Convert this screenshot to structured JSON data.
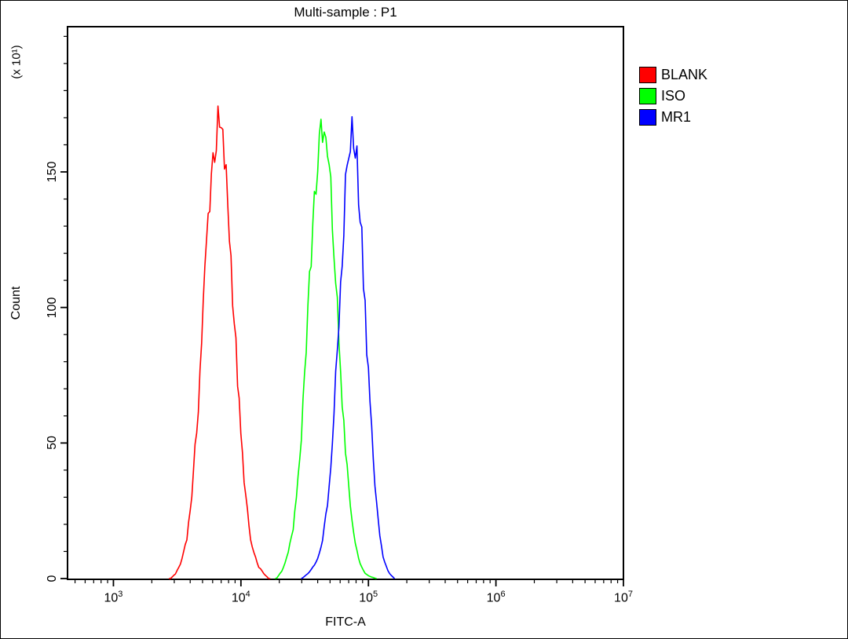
{
  "title": "Multi-sample : P1",
  "legend": {
    "items": [
      {
        "label": "BLANK",
        "color": "#ff0000"
      },
      {
        "label": "ISO",
        "color": "#00ff00"
      },
      {
        "label": "MR1",
        "color": "#0000ff"
      }
    ]
  },
  "chart_data": {
    "type": "line",
    "title": "Multi-sample : P1",
    "xlabel": "FITC-A",
    "ylabel": "Count",
    "y_unit_label": "(x 10¹)",
    "x_scale": "log10",
    "x_range_exp": [
      2.64,
      7
    ],
    "x_major_ticks_exp": [
      3,
      4,
      5,
      6,
      7
    ],
    "y_range": [
      0,
      203
    ],
    "y_major_ticks": [
      0,
      50,
      100,
      150
    ],
    "y_minor_step": 10,
    "grid": false,
    "legend_position": "top-right-outside",
    "series": [
      {
        "name": "BLANK",
        "color": "#ff0000",
        "peak_x": 6800,
        "peak_count": 165,
        "points": [
          [
            2800,
            0
          ],
          [
            3100,
            2
          ],
          [
            3400,
            6
          ],
          [
            3800,
            16
          ],
          [
            4200,
            35
          ],
          [
            4600,
            62
          ],
          [
            5000,
            95
          ],
          [
            5400,
            125
          ],
          [
            5800,
            148
          ],
          [
            6200,
            160
          ],
          [
            6600,
            165
          ],
          [
            7000,
            163
          ],
          [
            7400,
            155
          ],
          [
            7900,
            138
          ],
          [
            8500,
            112
          ],
          [
            9200,
            82
          ],
          [
            10000,
            52
          ],
          [
            11000,
            28
          ],
          [
            12000,
            13
          ],
          [
            13500,
            5
          ],
          [
            15000,
            2
          ],
          [
            16500,
            0
          ]
        ]
      },
      {
        "name": "ISO",
        "color": "#00ff00",
        "peak_x": 44000,
        "peak_count": 163,
        "points": [
          [
            19000,
            0
          ],
          [
            21000,
            3
          ],
          [
            23000,
            8
          ],
          [
            26000,
            20
          ],
          [
            29000,
            45
          ],
          [
            32000,
            80
          ],
          [
            35000,
            115
          ],
          [
            38000,
            143
          ],
          [
            41000,
            158
          ],
          [
            44000,
            163
          ],
          [
            47000,
            158
          ],
          [
            50000,
            145
          ],
          [
            54000,
            120
          ],
          [
            58000,
            92
          ],
          [
            63000,
            62
          ],
          [
            69000,
            36
          ],
          [
            76000,
            17
          ],
          [
            84000,
            7
          ],
          [
            93000,
            2
          ],
          [
            100000,
            1
          ],
          [
            115000,
            0
          ]
        ]
      },
      {
        "name": "MR1",
        "color": "#0000ff",
        "peak_x": 75000,
        "peak_count": 163,
        "points": [
          [
            30000,
            0
          ],
          [
            34000,
            2
          ],
          [
            38000,
            5
          ],
          [
            43000,
            12
          ],
          [
            48000,
            28
          ],
          [
            53000,
            55
          ],
          [
            58000,
            90
          ],
          [
            63000,
            125
          ],
          [
            67000,
            148
          ],
          [
            71000,
            160
          ],
          [
            75000,
            163
          ],
          [
            79000,
            158
          ],
          [
            84000,
            145
          ],
          [
            90000,
            120
          ],
          [
            97000,
            88
          ],
          [
            105000,
            58
          ],
          [
            113000,
            33
          ],
          [
            122000,
            16
          ],
          [
            132000,
            7
          ],
          [
            145000,
            2
          ],
          [
            160000,
            0
          ]
        ]
      }
    ]
  }
}
